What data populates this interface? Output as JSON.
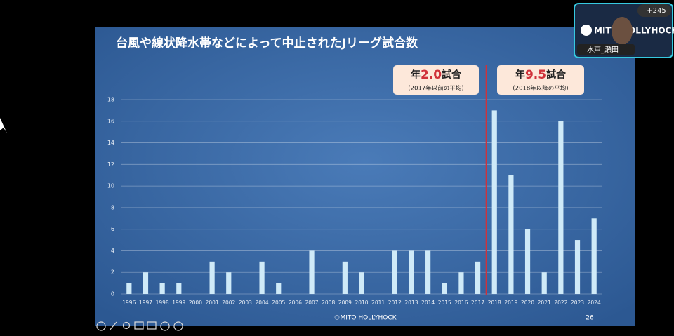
{
  "chart_data": {
    "type": "bar",
    "title": "台風や線状降水帯などによって中止されたJリーグ試合数",
    "categories": [
      "1996",
      "1997",
      "1998",
      "1999",
      "2000",
      "2001",
      "2002",
      "2003",
      "2004",
      "2005",
      "2006",
      "2007",
      "2008",
      "2009",
      "2010",
      "2011",
      "2012",
      "2013",
      "2014",
      "2015",
      "2016",
      "2017",
      "2018",
      "2019",
      "2020",
      "2021",
      "2022",
      "2023",
      "2024"
    ],
    "values": [
      1,
      2,
      1,
      1,
      0,
      3,
      2,
      0,
      3,
      1,
      0,
      4,
      0,
      3,
      2,
      0,
      4,
      4,
      4,
      1,
      2,
      3,
      17,
      11,
      6,
      2,
      16,
      5,
      7
    ],
    "color": "#cfeaf8",
    "ylim": [
      0,
      18
    ],
    "yticks": [
      0,
      2,
      4,
      6,
      8,
      10,
      12,
      14,
      16,
      18
    ],
    "grid": true,
    "annotations": [
      {
        "prefix": "年",
        "value": "2.0",
        "suffix": "試合",
        "note": "(2017年以前の平均)"
      },
      {
        "prefix": "年",
        "value": "9.5",
        "suffix": "試合",
        "note": "(2018年以降の平均)"
      }
    ]
  },
  "slide": {
    "footer": "©MITO HOLLYHOCK",
    "page": "26"
  },
  "participant": {
    "count": "+245",
    "logo": "MITO HOLLYHOCK",
    "name": "水戸_瀬田"
  }
}
